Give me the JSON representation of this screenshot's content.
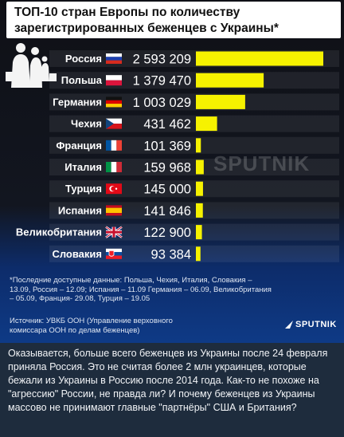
{
  "title": "ТОП-10 стран Европы по количеству зарегистрированных беженцев с Украины*",
  "chart_data": {
    "type": "bar",
    "orientation": "horizontal",
    "title": "ТОП-10 стран Европы по количеству зарегистрированных беженцев с Украины*",
    "categories": [
      "Россия",
      "Польша",
      "Германия",
      "Чехия",
      "Франция",
      "Италия",
      "Турция",
      "Испания",
      "Великобритания",
      "Словакия"
    ],
    "value_labels": [
      "2 593 209",
      "1 379 470",
      "1 003 029",
      "431 462",
      "101 369",
      "159 968",
      "145 000",
      "141 846",
      "122 900",
      "93 384"
    ],
    "values": [
      2593209,
      1379470,
      1003029,
      431462,
      101369,
      159968,
      145000,
      141846,
      122900,
      93384
    ],
    "bar_color": "#f6f200",
    "xlim": [
      0,
      2593209
    ]
  },
  "footnote": "*Последние доступные данные: Польша, Чехия, Италия, Словакия – 13.09, Россия – 12.09; Испания – 11.09 Германия – 06.09, Великобритания – 05.09, Франция- 29.08, Турция – 19.05",
  "source": "Источник: УВКБ ООН (Управление верховного комиссара ООН по делам беженцев)",
  "logo_text": "SPUTNIK",
  "watermark_text": "SPUTNIK",
  "message": "Оказывается, больше всего беженцев из Украины после 24 февраля приняла Россия. Это не считая более 2 млн украинцев, которые бежали из Украины в Россию после 2014 года. Как-то не похоже на \"агрессию\" России, не правда ли? И почему беженцев из Украины массово не принимают главные \"партнёры\" США и Британия?",
  "flags": [
    "russia-flag",
    "poland-flag",
    "germany-flag",
    "czechia-flag",
    "france-flag",
    "italy-flag",
    "turkey-flag",
    "spain-flag",
    "uk-flag",
    "slovakia-flag"
  ]
}
